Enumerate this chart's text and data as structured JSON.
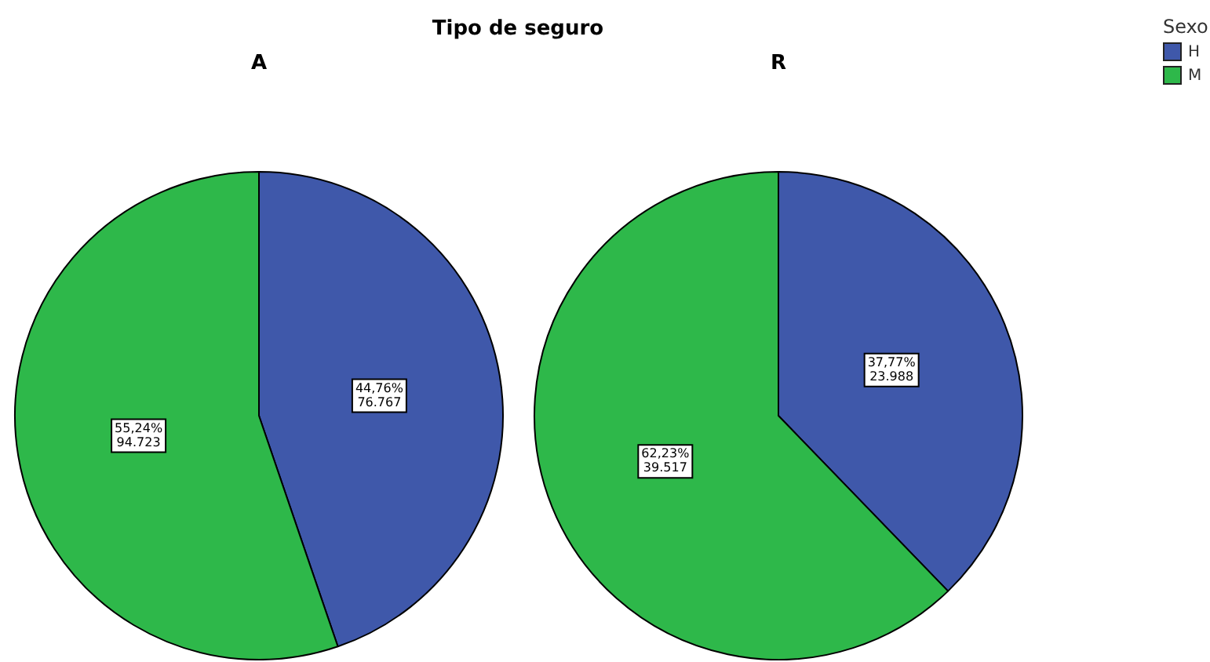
{
  "chart_data": [
    {
      "type": "pie",
      "title": "Tipo de seguro",
      "subtitle": "A",
      "categories": [
        null,
        null
      ],
      "values": [
        44.76,
        55.24
      ],
      "colors": [
        "#3f58aa",
        "#2eb84a"
      ],
      "value_labels": [
        "44,76%\n76.767",
        "55,24%\n94.723"
      ]
    },
    {
      "type": "pie",
      "subtitle": "R",
      "categories": [
        "H",
        "M"
      ],
      "values": [
        37.77,
        62.23
      ],
      "colors": [
        "#3f58aa",
        "#2eb84a"
      ],
      "value_labels": [
        "37,77%\n23.988",
        "62,23%\n39.517"
      ],
      "legend": "top right",
      "legend_title": "Sexo"
    }
  ]
}
